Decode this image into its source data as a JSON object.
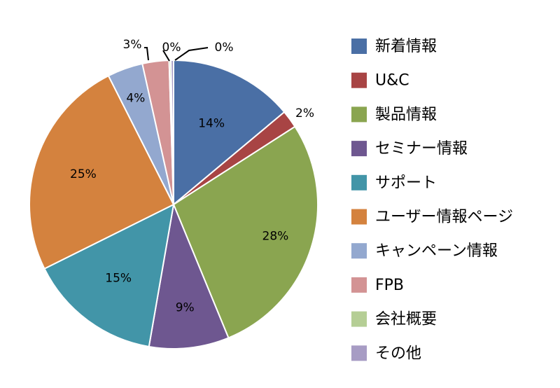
{
  "chart_data": {
    "type": "pie",
    "categories": [
      "新着情報",
      "U&C",
      "製品情報",
      "セミナー情報",
      "サポート",
      "ユーザー情報ページ",
      "キャンペーン情報",
      "FPB",
      "会社概要",
      "その他"
    ],
    "values": [
      14,
      2,
      28,
      9,
      15,
      25,
      4,
      3,
      0.2,
      0.3
    ],
    "data_labels": [
      "14%",
      "2%",
      "28%",
      "9%",
      "15%",
      "25%",
      "4%",
      "3%",
      "0%",
      "0%"
    ],
    "colors": [
      "#4a6fa5",
      "#a84444",
      "#8aa550",
      "#6e5790",
      "#4295a8",
      "#d4823e",
      "#93a8cf",
      "#d39394",
      "#b5ce95",
      "#a79cc4"
    ],
    "legend_position": "right"
  }
}
